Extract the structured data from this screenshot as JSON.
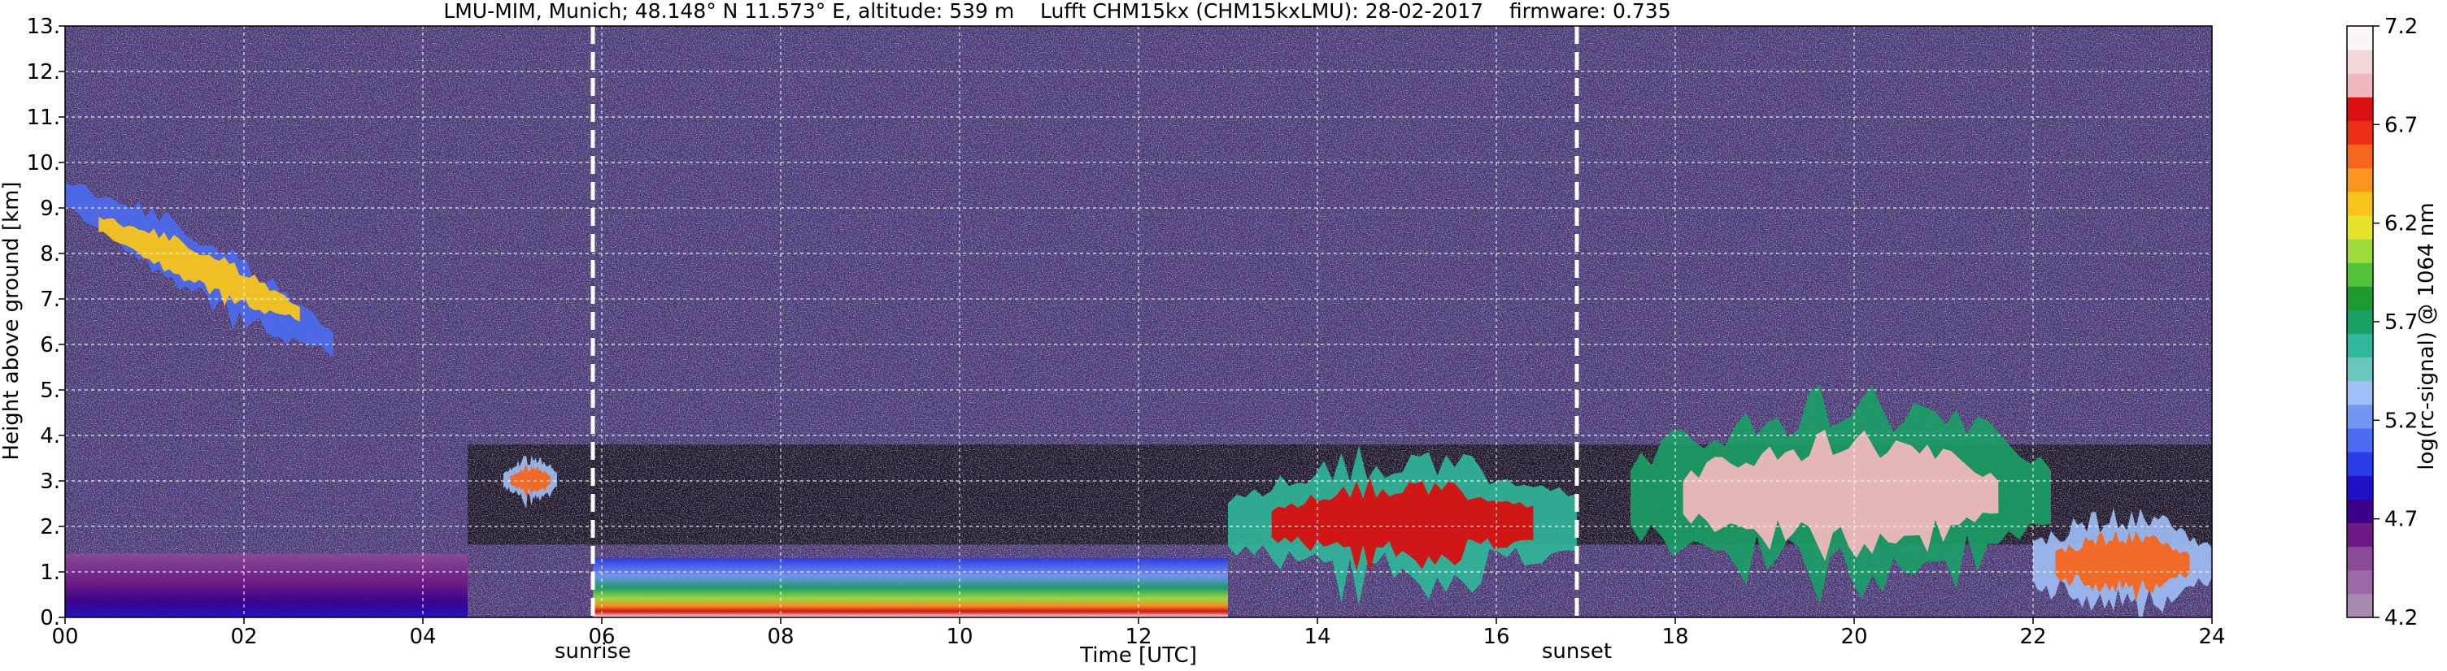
{
  "chart_data": {
    "type": "heatmap",
    "title": "LMU-MIM, Munich; 48.148° N 11.573° E, altitude: 539 m    Lufft CHM15kx (CHM15kxLMU): 28-02-2017    firmware: 0.735",
    "xlabel": "Time [UTC]",
    "ylabel": "Height above ground [km]",
    "xlim": [
      0,
      24
    ],
    "ylim": [
      0,
      13
    ],
    "x_ticks": [
      "00",
      "02",
      "04",
      "06",
      "08",
      "10",
      "12",
      "14",
      "16",
      "18",
      "20",
      "22",
      "24"
    ],
    "x_tick_values": [
      0,
      2,
      4,
      6,
      8,
      10,
      12,
      14,
      16,
      18,
      20,
      22,
      24
    ],
    "y_ticks": [
      "0.",
      "1.",
      "2.",
      "3.",
      "4.",
      "5.",
      "6.",
      "7.",
      "8.",
      "9.",
      "10.",
      "11.",
      "12.",
      "13."
    ],
    "y_tick_values": [
      0,
      1,
      2,
      3,
      4,
      5,
      6,
      7,
      8,
      9,
      10,
      11,
      12,
      13
    ],
    "grid": true,
    "colorbar": {
      "label": "log(rc-signal) @ 1064 nm",
      "range": [
        4.2,
        7.2
      ],
      "ticks": [
        "4.2",
        "4.7",
        "5.2",
        "5.7",
        "6.2",
        "6.7",
        "7.2"
      ],
      "tick_values": [
        4.2,
        4.7,
        5.2,
        5.7,
        6.2,
        6.7,
        7.2
      ],
      "colors": [
        "#a98bb0",
        "#9b6aa6",
        "#8a4a97",
        "#6e1a86",
        "#3a008a",
        "#1f10c4",
        "#2a3ce8",
        "#4b6cf0",
        "#7396f3",
        "#9fbff6",
        "#6cc6c0",
        "#2fb89a",
        "#1aa066",
        "#1f9a2e",
        "#54c23a",
        "#9edc3e",
        "#e6e32b",
        "#f7c51a",
        "#fa961d",
        "#f6661c",
        "#ee2f17",
        "#d90f10",
        "#efb8bd",
        "#f3d6d8",
        "#fcf7f7"
      ]
    },
    "annotations": [
      {
        "label": "sunrise",
        "x": 5.9
      },
      {
        "label": "sunset",
        "x": 16.9
      }
    ],
    "features": [
      {
        "kind": "boundary layer",
        "x_range": [
          0,
          4.5
        ],
        "height_km": [
          0,
          1.4
        ],
        "level": 5.0
      },
      {
        "kind": "aerosol layer",
        "x_range": [
          5.9,
          13.0
        ],
        "height_km": [
          0,
          1.3
        ],
        "level": 6.0
      },
      {
        "kind": "cirrus",
        "x_range": [
          0,
          3.0
        ],
        "height_km": [
          5.3,
          10.0
        ],
        "level": 6.3
      },
      {
        "kind": "cloud",
        "x_range": [
          4.9,
          5.5
        ],
        "height_km": [
          2.5,
          3.5
        ],
        "level": 6.5
      },
      {
        "kind": "cloud",
        "x_range": [
          13.0,
          16.9
        ],
        "height_km": [
          0.5,
          3.6
        ],
        "level": 6.8
      },
      {
        "kind": "cloud",
        "x_range": [
          17.5,
          22.2
        ],
        "height_km": [
          0.5,
          4.8
        ],
        "level": 6.9
      },
      {
        "kind": "low cloud",
        "x_range": [
          22.0,
          24.0
        ],
        "height_km": [
          0,
          2.3
        ],
        "level": 6.6
      }
    ]
  }
}
